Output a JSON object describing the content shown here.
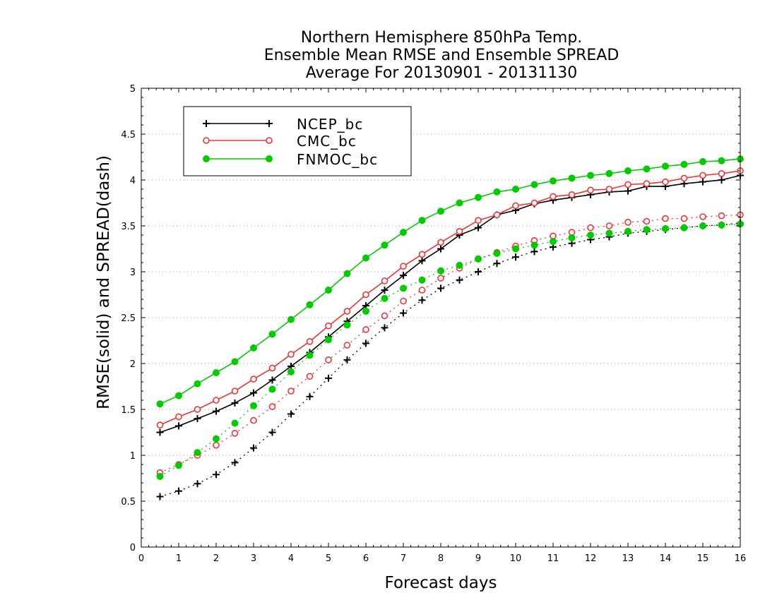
{
  "chart_data": {
    "type": "line",
    "title_lines": [
      "Northern Hemisphere 850hPa Temp.",
      "Ensemble Mean RMSE and Ensemble SPREAD",
      "Average For 20130901 - 20131130"
    ],
    "xlabel": "Forecast days",
    "ylabel": "RMSE(solid) and SPREAD(dash)",
    "xlim": [
      0,
      16
    ],
    "ylim": [
      0,
      5
    ],
    "xticks": [
      0,
      1,
      2,
      3,
      4,
      5,
      6,
      7,
      8,
      9,
      10,
      11,
      12,
      13,
      14,
      15,
      16
    ],
    "yticks": [
      0,
      0.5,
      1,
      1.5,
      2,
      2.5,
      3,
      3.5,
      4,
      4.5,
      5
    ],
    "ytick_labels": [
      "0",
      "0.5",
      "1",
      "1.5",
      "2",
      "2.5",
      "3",
      "3.5",
      "4",
      "4.5",
      "5"
    ],
    "grid": "horizontal dotted",
    "legend_position": "top-left",
    "x": [
      0.5,
      1,
      1.5,
      2,
      2.5,
      3,
      3.5,
      4,
      4.5,
      5,
      5.5,
      6,
      6.5,
      7,
      7.5,
      8,
      8.5,
      9,
      9.5,
      10,
      10.5,
      11,
      11.5,
      12,
      12.5,
      13,
      13.5,
      14,
      14.5,
      15,
      15.5,
      16
    ],
    "series": [
      {
        "name": "NCEP_bc",
        "color": "#000000",
        "marker": "plus",
        "rmse": [
          1.25,
          1.32,
          1.4,
          1.48,
          1.57,
          1.68,
          1.82,
          1.97,
          2.12,
          2.29,
          2.46,
          2.63,
          2.8,
          2.96,
          3.12,
          3.25,
          3.4,
          3.48,
          3.62,
          3.67,
          3.74,
          3.78,
          3.81,
          3.84,
          3.87,
          3.88,
          3.93,
          3.93,
          3.96,
          3.98,
          4.0,
          4.05
        ],
        "spread": [
          0.55,
          0.61,
          0.69,
          0.79,
          0.92,
          1.08,
          1.25,
          1.45,
          1.64,
          1.84,
          2.04,
          2.22,
          2.39,
          2.55,
          2.69,
          2.82,
          2.91,
          3.0,
          3.09,
          3.16,
          3.22,
          3.27,
          3.31,
          3.35,
          3.38,
          3.42,
          3.44,
          3.46,
          3.48,
          3.5,
          3.51,
          3.53
        ]
      },
      {
        "name": "CMC_bc",
        "color": "#ee3333",
        "marker": "open-circle",
        "rmse": [
          1.33,
          1.42,
          1.5,
          1.6,
          1.7,
          1.83,
          1.95,
          2.1,
          2.24,
          2.41,
          2.57,
          2.75,
          2.9,
          3.06,
          3.19,
          3.32,
          3.44,
          3.56,
          3.62,
          3.72,
          3.75,
          3.82,
          3.84,
          3.89,
          3.9,
          3.95,
          3.96,
          3.98,
          4.02,
          4.05,
          4.07,
          4.1
        ],
        "spread": [
          0.81,
          0.9,
          1.0,
          1.11,
          1.24,
          1.38,
          1.53,
          1.7,
          1.86,
          2.04,
          2.2,
          2.37,
          2.52,
          2.68,
          2.8,
          2.93,
          3.04,
          3.14,
          3.21,
          3.28,
          3.34,
          3.39,
          3.43,
          3.48,
          3.5,
          3.54,
          3.55,
          3.58,
          3.58,
          3.6,
          3.61,
          3.62
        ]
      },
      {
        "name": "FNMOC_bc",
        "color": "#00cc00",
        "marker": "filled-circle",
        "rmse": [
          1.56,
          1.65,
          1.78,
          1.9,
          2.02,
          2.17,
          2.32,
          2.48,
          2.64,
          2.8,
          2.98,
          3.15,
          3.29,
          3.43,
          3.56,
          3.66,
          3.75,
          3.81,
          3.87,
          3.9,
          3.95,
          3.99,
          4.02,
          4.05,
          4.07,
          4.1,
          4.12,
          4.15,
          4.17,
          4.2,
          4.21,
          4.23
        ],
        "spread": [
          0.77,
          0.89,
          1.03,
          1.18,
          1.35,
          1.54,
          1.72,
          1.91,
          2.09,
          2.26,
          2.42,
          2.57,
          2.71,
          2.82,
          2.91,
          3.01,
          3.07,
          3.14,
          3.2,
          3.25,
          3.29,
          3.33,
          3.37,
          3.4,
          3.42,
          3.44,
          3.46,
          3.47,
          3.48,
          3.5,
          3.51,
          3.52
        ]
      }
    ]
  }
}
